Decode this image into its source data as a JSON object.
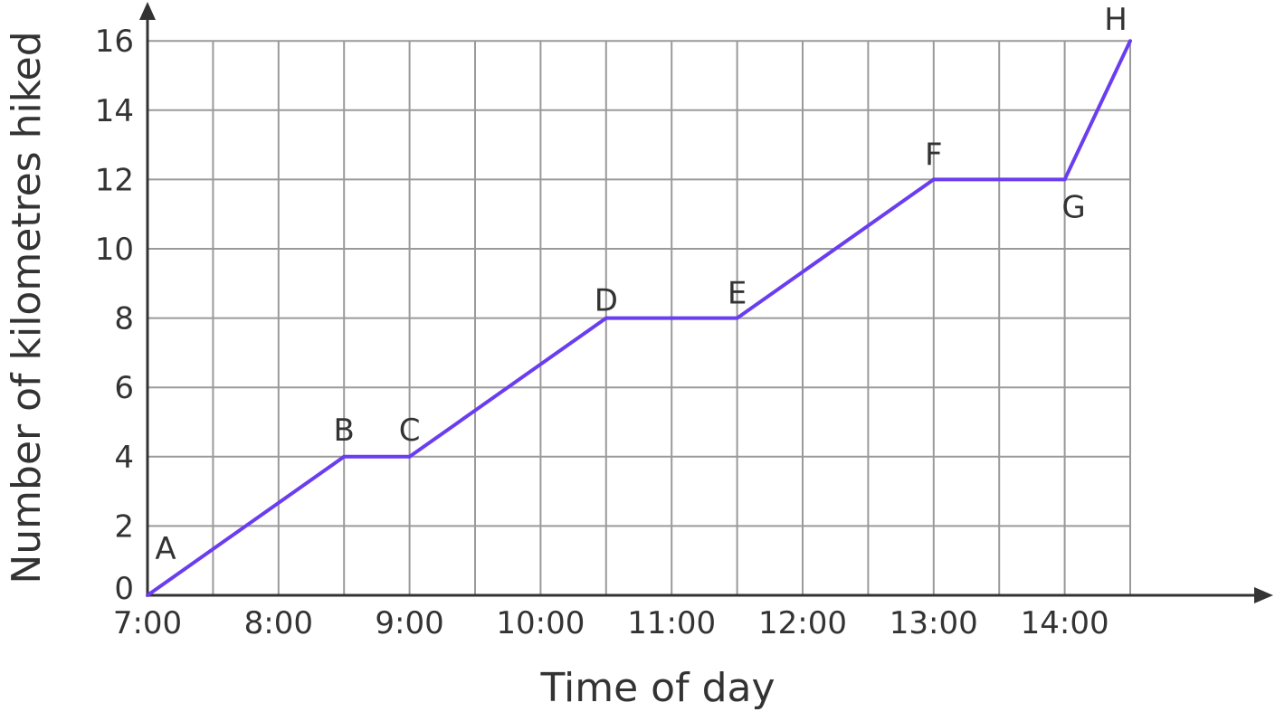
{
  "chart_data": {
    "type": "line",
    "title": "",
    "xlabel": "Time of day",
    "ylabel": "Number of kilometres hiked",
    "x_tick_labels": [
      "7:00",
      "8:00",
      "9:00",
      "10:00",
      "11:00",
      "12:00",
      "13:00",
      "14:00"
    ],
    "y_tick_labels": [
      "0",
      "2",
      "4",
      "6",
      "8",
      "10",
      "12",
      "14",
      "16"
    ],
    "xlim": [
      "7:00",
      "14:30"
    ],
    "ylim": [
      0,
      16
    ],
    "grid": true,
    "series": [
      {
        "color": "#6a3df0",
        "points": [
          {
            "label": "A",
            "x": "7:00",
            "y": 0
          },
          {
            "label": "B",
            "x": "8:30",
            "y": 4
          },
          {
            "label": "C",
            "x": "9:00",
            "y": 4
          },
          {
            "label": "D",
            "x": "10:30",
            "y": 8
          },
          {
            "label": "E",
            "x": "11:30",
            "y": 8
          },
          {
            "label": "F",
            "x": "13:00",
            "y": 12
          },
          {
            "label": "G",
            "x": "14:00",
            "y": 12
          },
          {
            "label": "H",
            "x": "14:30",
            "y": 16
          }
        ]
      }
    ]
  }
}
